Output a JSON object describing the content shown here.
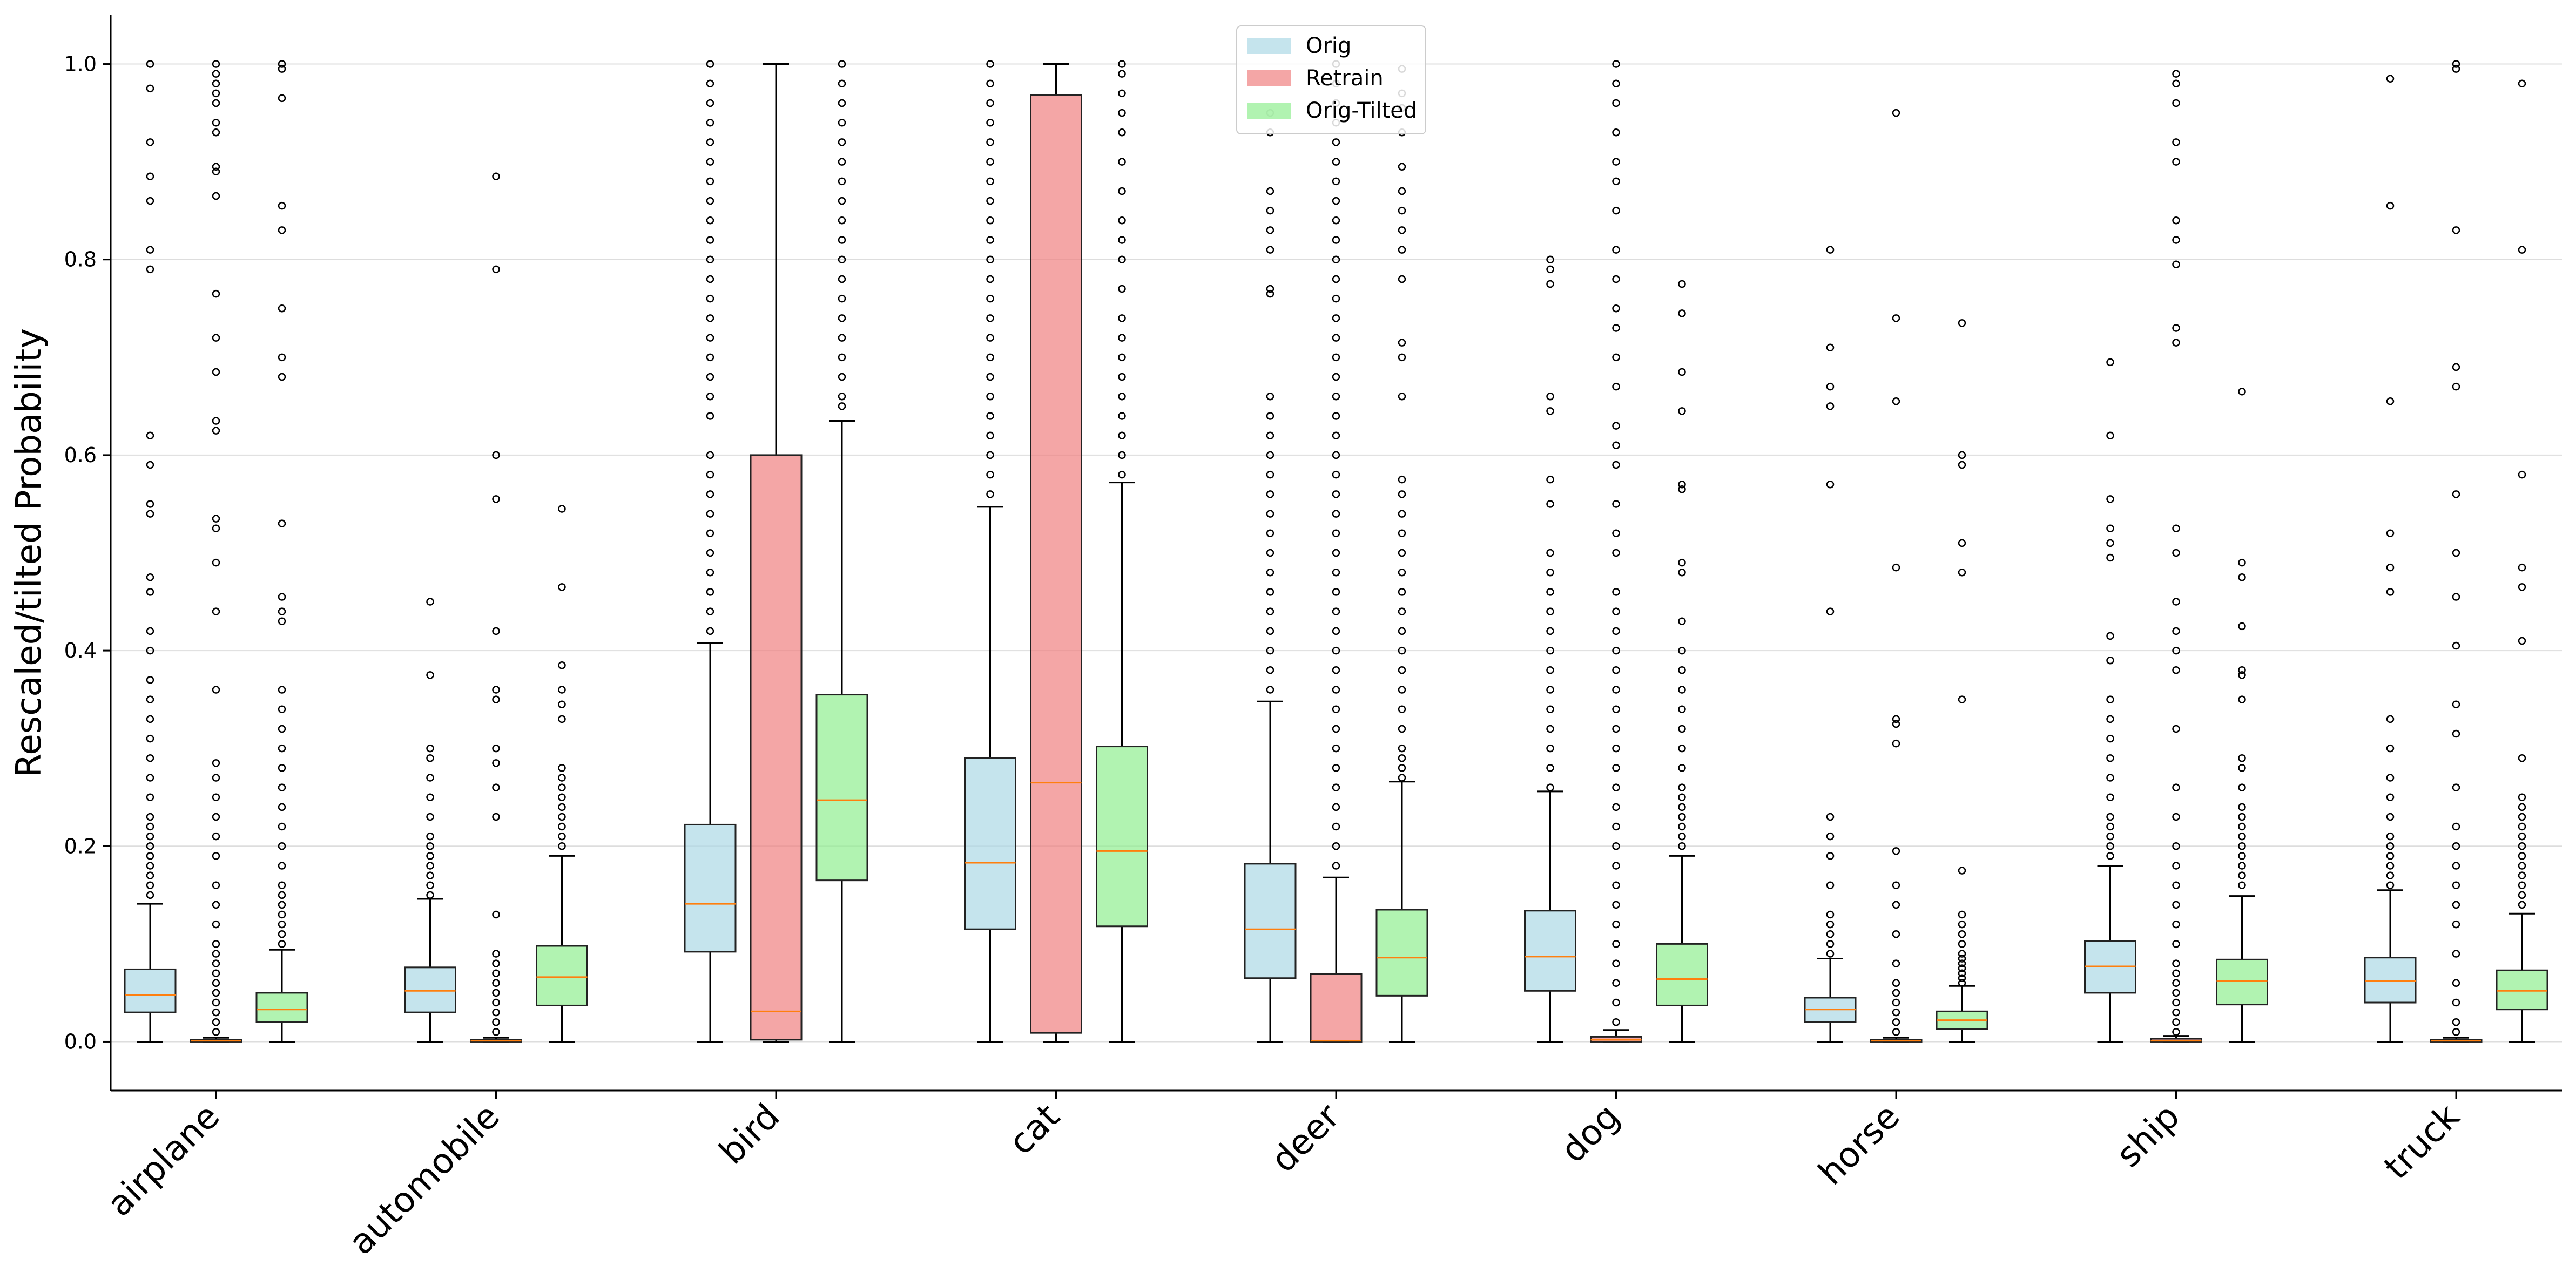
{
  "chart_data": {
    "type": "boxplot",
    "title": "",
    "xlabel": "",
    "ylabel": "Rescaled/tilted Probability",
    "ylim": [
      -0.05,
      1.05
    ],
    "yticks": [
      "0.0",
      "0.2",
      "0.4",
      "0.6",
      "0.8",
      "1.0"
    ],
    "grid": "horizontal",
    "legend_placement": "top-center",
    "categories": [
      "airplane",
      "automobile",
      "bird",
      "cat",
      "deer",
      "dog",
      "horse",
      "ship",
      "truck"
    ],
    "series": [
      {
        "name": "Orig",
        "color": "#add8e6",
        "boxes": [
          {
            "whislo": 0.0,
            "q1": 0.03,
            "med": 0.048,
            "q3": 0.074,
            "whishi": 0.141,
            "fliers": [
              0.15,
              0.16,
              0.17,
              0.18,
              0.19,
              0.2,
              0.21,
              0.22,
              0.23,
              0.25,
              0.27,
              0.29,
              0.31,
              0.33,
              0.35,
              0.37,
              0.4,
              0.42,
              0.46,
              0.475,
              0.54,
              0.55,
              0.59,
              0.62,
              0.79,
              0.81,
              0.86,
              0.885,
              0.92,
              0.975,
              1.0
            ]
          },
          {
            "whislo": 0.0,
            "q1": 0.03,
            "med": 0.052,
            "q3": 0.076,
            "whishi": 0.146,
            "fliers": [
              0.15,
              0.16,
              0.17,
              0.18,
              0.19,
              0.2,
              0.21,
              0.23,
              0.25,
              0.27,
              0.29,
              0.3,
              0.375,
              0.45
            ]
          },
          {
            "whislo": 0.0,
            "q1": 0.092,
            "med": 0.141,
            "q3": 0.222,
            "whishi": 0.408,
            "fliers": [
              0.42,
              0.44,
              0.46,
              0.48,
              0.5,
              0.52,
              0.54,
              0.56,
              0.58,
              0.6,
              0.64,
              0.66,
              0.68,
              0.7,
              0.72,
              0.74,
              0.76,
              0.78,
              0.8,
              0.82,
              0.84,
              0.86,
              0.88,
              0.9,
              0.92,
              0.94,
              0.96,
              0.98,
              1.0
            ]
          },
          {
            "whislo": 0.0,
            "q1": 0.115,
            "med": 0.183,
            "q3": 0.29,
            "whishi": 0.547,
            "fliers": [
              0.56,
              0.58,
              0.6,
              0.62,
              0.64,
              0.66,
              0.68,
              0.7,
              0.72,
              0.74,
              0.76,
              0.78,
              0.8,
              0.82,
              0.84,
              0.86,
              0.88,
              0.9,
              0.92,
              0.94,
              0.96,
              0.98,
              1.0
            ]
          },
          {
            "whislo": 0.0,
            "q1": 0.065,
            "med": 0.115,
            "q3": 0.182,
            "whishi": 0.348,
            "fliers": [
              0.36,
              0.38,
              0.4,
              0.42,
              0.44,
              0.46,
              0.48,
              0.5,
              0.52,
              0.54,
              0.56,
              0.58,
              0.6,
              0.62,
              0.64,
              0.66,
              0.765,
              0.77,
              0.81,
              0.83,
              0.85,
              0.87,
              0.93,
              0.95
            ]
          },
          {
            "whislo": 0.0,
            "q1": 0.052,
            "med": 0.087,
            "q3": 0.134,
            "whishi": 0.256,
            "fliers": [
              0.26,
              0.28,
              0.3,
              0.32,
              0.34,
              0.36,
              0.38,
              0.4,
              0.42,
              0.44,
              0.46,
              0.48,
              0.5,
              0.55,
              0.575,
              0.645,
              0.66,
              0.775,
              0.79,
              0.8
            ]
          },
          {
            "whislo": 0.0,
            "q1": 0.02,
            "med": 0.033,
            "q3": 0.045,
            "whishi": 0.085,
            "fliers": [
              0.09,
              0.1,
              0.11,
              0.12,
              0.13,
              0.16,
              0.19,
              0.21,
              0.23,
              0.44,
              0.57,
              0.65,
              0.67,
              0.71,
              0.81
            ]
          },
          {
            "whislo": 0.0,
            "q1": 0.05,
            "med": 0.077,
            "q3": 0.103,
            "whishi": 0.18,
            "fliers": [
              0.19,
              0.2,
              0.21,
              0.22,
              0.23,
              0.25,
              0.27,
              0.29,
              0.31,
              0.33,
              0.35,
              0.39,
              0.415,
              0.495,
              0.51,
              0.525,
              0.555,
              0.62,
              0.695
            ]
          },
          {
            "whislo": 0.0,
            "q1": 0.04,
            "med": 0.062,
            "q3": 0.086,
            "whishi": 0.155,
            "fliers": [
              0.16,
              0.17,
              0.18,
              0.19,
              0.2,
              0.21,
              0.23,
              0.25,
              0.27,
              0.3,
              0.33,
              0.46,
              0.485,
              0.52,
              0.655,
              0.855,
              0.985
            ]
          }
        ]
      },
      {
        "name": "Retrain",
        "color": "#f08080",
        "boxes": [
          {
            "whislo": 0.0,
            "q1": 0.0,
            "med": 0.001,
            "q3": 0.002,
            "whishi": 0.004,
            "fliers": [
              0.01,
              0.02,
              0.03,
              0.04,
              0.05,
              0.06,
              0.07,
              0.08,
              0.09,
              0.1,
              0.12,
              0.14,
              0.16,
              0.19,
              0.21,
              0.23,
              0.25,
              0.27,
              0.285,
              0.36,
              0.44,
              0.49,
              0.525,
              0.535,
              0.625,
              0.635,
              0.685,
              0.72,
              0.765,
              0.865,
              0.89,
              0.895,
              0.93,
              0.94,
              0.96,
              0.97,
              0.98,
              0.99,
              1.0
            ]
          },
          {
            "whislo": 0.0,
            "q1": 0.0,
            "med": 0.001,
            "q3": 0.002,
            "whishi": 0.004,
            "fliers": [
              0.01,
              0.02,
              0.03,
              0.04,
              0.05,
              0.06,
              0.07,
              0.08,
              0.09,
              0.13,
              0.23,
              0.26,
              0.285,
              0.3,
              0.35,
              0.36,
              0.42,
              0.555,
              0.6,
              0.79,
              0.885
            ]
          },
          {
            "whislo": 0.0,
            "q1": 0.002,
            "med": 0.031,
            "q3": 0.6,
            "whishi": 1.0,
            "fliers": []
          },
          {
            "whislo": 0.0,
            "q1": 0.009,
            "med": 0.265,
            "q3": 0.968,
            "whishi": 1.0,
            "fliers": []
          },
          {
            "whislo": 0.0,
            "q1": 0.0,
            "med": 0.001,
            "q3": 0.069,
            "whishi": 0.168,
            "fliers": [
              0.18,
              0.2,
              0.22,
              0.24,
              0.26,
              0.28,
              0.3,
              0.32,
              0.34,
              0.36,
              0.38,
              0.4,
              0.42,
              0.44,
              0.46,
              0.48,
              0.5,
              0.52,
              0.54,
              0.56,
              0.58,
              0.6,
              0.62,
              0.64,
              0.66,
              0.68,
              0.7,
              0.72,
              0.74,
              0.76,
              0.78,
              0.8,
              0.82,
              0.84,
              0.86,
              0.88,
              0.9,
              0.92,
              0.94,
              0.96,
              0.98,
              1.0
            ]
          },
          {
            "whislo": 0.0,
            "q1": 0.0,
            "med": 0.002,
            "q3": 0.005,
            "whishi": 0.012,
            "fliers": [
              0.02,
              0.04,
              0.06,
              0.08,
              0.1,
              0.12,
              0.14,
              0.16,
              0.18,
              0.2,
              0.22,
              0.24,
              0.26,
              0.28,
              0.3,
              0.32,
              0.34,
              0.36,
              0.38,
              0.4,
              0.42,
              0.44,
              0.46,
              0.5,
              0.52,
              0.55,
              0.59,
              0.61,
              0.63,
              0.67,
              0.7,
              0.73,
              0.75,
              0.78,
              0.81,
              0.85,
              0.88,
              0.9,
              0.93,
              0.96,
              0.98,
              1.0
            ]
          },
          {
            "whislo": 0.0,
            "q1": 0.0,
            "med": 0.001,
            "q3": 0.002,
            "whishi": 0.004,
            "fliers": [
              0.01,
              0.02,
              0.03,
              0.04,
              0.05,
              0.06,
              0.08,
              0.11,
              0.14,
              0.16,
              0.195,
              0.305,
              0.325,
              0.33,
              0.485,
              0.655,
              0.74,
              0.95
            ]
          },
          {
            "whislo": 0.0,
            "q1": 0.0,
            "med": 0.001,
            "q3": 0.003,
            "whishi": 0.006,
            "fliers": [
              0.01,
              0.02,
              0.03,
              0.04,
              0.05,
              0.06,
              0.07,
              0.08,
              0.1,
              0.12,
              0.14,
              0.16,
              0.18,
              0.2,
              0.23,
              0.26,
              0.32,
              0.38,
              0.4,
              0.42,
              0.45,
              0.5,
              0.525,
              0.715,
              0.73,
              0.795,
              0.82,
              0.84,
              0.9,
              0.92,
              0.96,
              0.98,
              0.99
            ]
          },
          {
            "whislo": 0.0,
            "q1": 0.0,
            "med": 0.001,
            "q3": 0.002,
            "whishi": 0.004,
            "fliers": [
              0.01,
              0.02,
              0.04,
              0.06,
              0.09,
              0.12,
              0.14,
              0.16,
              0.18,
              0.2,
              0.22,
              0.26,
              0.315,
              0.345,
              0.405,
              0.455,
              0.5,
              0.56,
              0.67,
              0.69,
              0.83,
              0.995,
              1.0
            ]
          }
        ]
      },
      {
        "name": "Orig-Tilted",
        "color": "#90ee90",
        "boxes": [
          {
            "whislo": 0.0,
            "q1": 0.02,
            "med": 0.033,
            "q3": 0.05,
            "whishi": 0.094,
            "fliers": [
              0.1,
              0.11,
              0.12,
              0.13,
              0.14,
              0.15,
              0.16,
              0.18,
              0.2,
              0.22,
              0.24,
              0.26,
              0.28,
              0.3,
              0.32,
              0.34,
              0.36,
              0.43,
              0.44,
              0.455,
              0.53,
              0.68,
              0.7,
              0.75,
              0.83,
              0.855,
              0.965,
              0.995,
              1.0
            ]
          },
          {
            "whislo": 0.0,
            "q1": 0.037,
            "med": 0.066,
            "q3": 0.098,
            "whishi": 0.19,
            "fliers": [
              0.2,
              0.21,
              0.22,
              0.23,
              0.24,
              0.25,
              0.26,
              0.27,
              0.28,
              0.33,
              0.345,
              0.36,
              0.385,
              0.465,
              0.545
            ]
          },
          {
            "whislo": 0.0,
            "q1": 0.165,
            "med": 0.247,
            "q3": 0.355,
            "whishi": 0.635,
            "fliers": [
              0.65,
              0.66,
              0.68,
              0.7,
              0.72,
              0.74,
              0.76,
              0.78,
              0.8,
              0.82,
              0.84,
              0.86,
              0.88,
              0.9,
              0.92,
              0.94,
              0.96,
              0.98,
              1.0
            ]
          },
          {
            "whislo": 0.0,
            "q1": 0.118,
            "med": 0.195,
            "q3": 0.302,
            "whishi": 0.572,
            "fliers": [
              0.58,
              0.6,
              0.62,
              0.64,
              0.66,
              0.68,
              0.7,
              0.72,
              0.74,
              0.77,
              0.8,
              0.82,
              0.84,
              0.87,
              0.9,
              0.93,
              0.95,
              0.97,
              0.99,
              1.0
            ]
          },
          {
            "whislo": 0.0,
            "q1": 0.047,
            "med": 0.086,
            "q3": 0.135,
            "whishi": 0.266,
            "fliers": [
              0.27,
              0.28,
              0.29,
              0.3,
              0.32,
              0.34,
              0.36,
              0.38,
              0.4,
              0.42,
              0.44,
              0.46,
              0.48,
              0.5,
              0.52,
              0.54,
              0.56,
              0.575,
              0.66,
              0.7,
              0.715,
              0.78,
              0.81,
              0.83,
              0.85,
              0.87,
              0.895,
              0.93,
              0.955,
              0.97,
              0.995
            ]
          },
          {
            "whislo": 0.0,
            "q1": 0.037,
            "med": 0.064,
            "q3": 0.1,
            "whishi": 0.19,
            "fliers": [
              0.2,
              0.21,
              0.22,
              0.23,
              0.24,
              0.25,
              0.26,
              0.28,
              0.3,
              0.32,
              0.34,
              0.36,
              0.38,
              0.4,
              0.43,
              0.48,
              0.49,
              0.565,
              0.57,
              0.645,
              0.685,
              0.745,
              0.775
            ]
          },
          {
            "whislo": 0.0,
            "q1": 0.013,
            "med": 0.022,
            "q3": 0.031,
            "whishi": 0.057,
            "fliers": [
              0.06,
              0.065,
              0.07,
              0.075,
              0.08,
              0.085,
              0.09,
              0.1,
              0.11,
              0.12,
              0.13,
              0.175,
              0.35,
              0.48,
              0.51,
              0.59,
              0.6,
              0.735
            ]
          },
          {
            "whislo": 0.0,
            "q1": 0.038,
            "med": 0.062,
            "q3": 0.084,
            "whishi": 0.149,
            "fliers": [
              0.16,
              0.17,
              0.18,
              0.19,
              0.2,
              0.21,
              0.22,
              0.23,
              0.24,
              0.26,
              0.28,
              0.29,
              0.35,
              0.375,
              0.38,
              0.425,
              0.475,
              0.49,
              0.665
            ]
          },
          {
            "whislo": 0.0,
            "q1": 0.033,
            "med": 0.052,
            "q3": 0.073,
            "whishi": 0.131,
            "fliers": [
              0.14,
              0.15,
              0.16,
              0.17,
              0.18,
              0.19,
              0.2,
              0.21,
              0.22,
              0.23,
              0.24,
              0.25,
              0.29,
              0.41,
              0.465,
              0.485,
              0.58,
              0.81,
              0.98
            ]
          }
        ]
      }
    ]
  }
}
